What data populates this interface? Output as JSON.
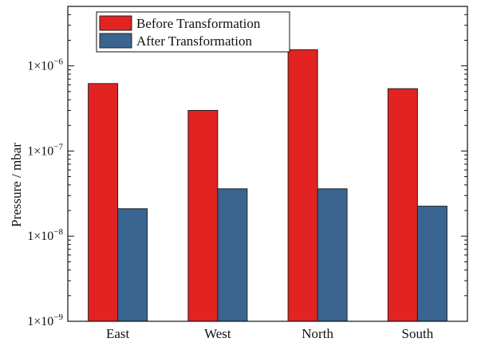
{
  "chart_data": {
    "type": "bar",
    "title": "",
    "xlabel": "",
    "ylabel": "Pressure / mbar",
    "yscale": "log",
    "ylim": [
      1e-09,
      5e-06
    ],
    "grid": false,
    "legend_position": "top-left",
    "categories": [
      "East",
      "West",
      "North",
      "South"
    ],
    "y_ticks": [
      {
        "value": 1e-09,
        "base": "1×10",
        "exp": "−9"
      },
      {
        "value": 1e-08,
        "base": "1×10",
        "exp": "−8"
      },
      {
        "value": 1e-07,
        "base": "1×10",
        "exp": "−7"
      },
      {
        "value": 1e-06,
        "base": "1×10",
        "exp": "−6"
      }
    ],
    "series": [
      {
        "name": "Before Transformation",
        "color": "#e32322",
        "values": [
          6.2e-07,
          3e-07,
          1.55e-06,
          5.4e-07
        ]
      },
      {
        "name": "After Transformation",
        "color": "#3a6590",
        "values": [
          2.1e-08,
          3.6e-08,
          3.6e-08,
          2.25e-08
        ]
      }
    ]
  }
}
